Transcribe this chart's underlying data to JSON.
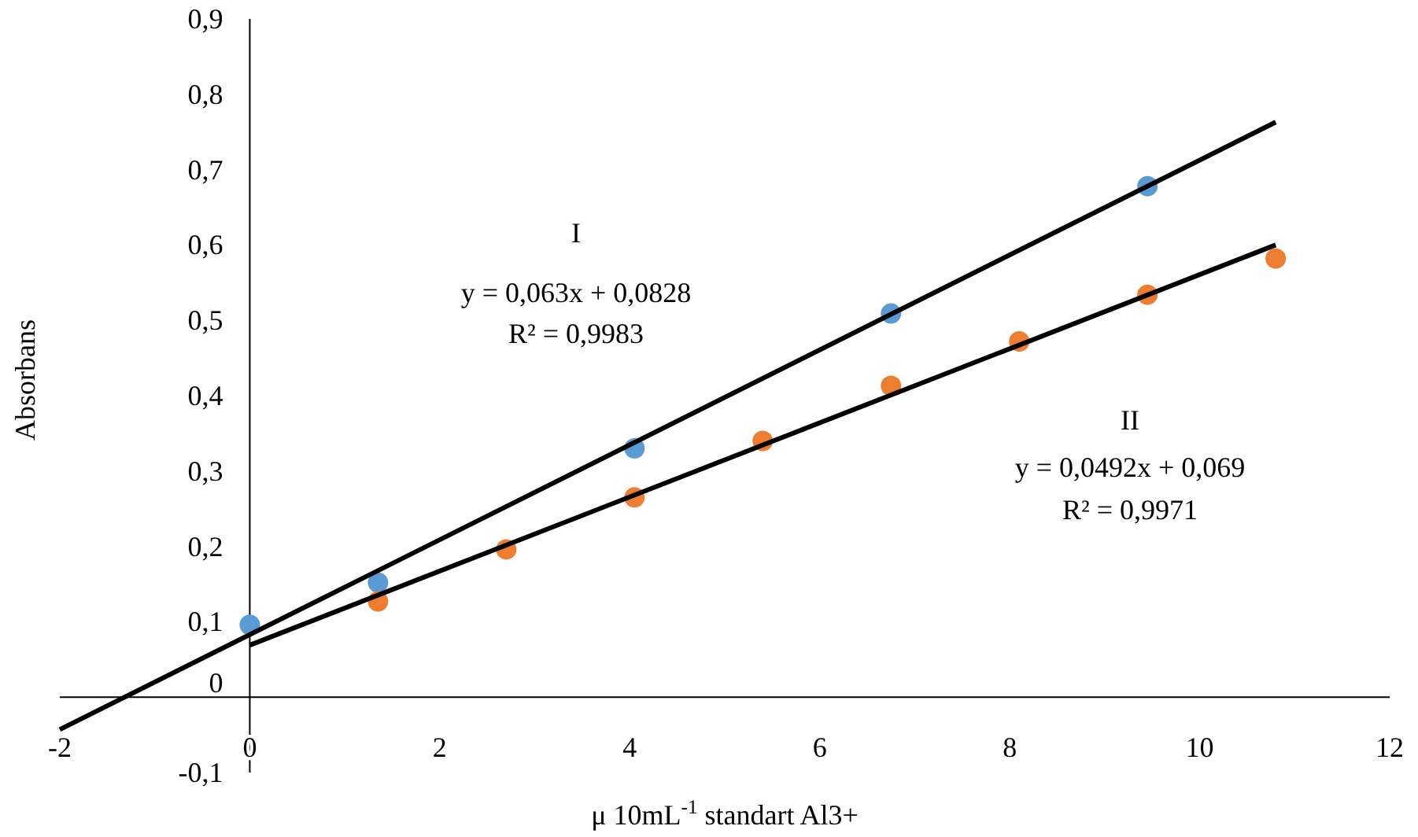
{
  "chart_data": {
    "type": "scatter",
    "xlabel": "μ 10mL$^{-1}$ standart Al3+",
    "ylabel": "Absorbans",
    "xlim": [
      -2,
      12
    ],
    "xticks": [
      -2,
      0,
      2,
      4,
      6,
      8,
      10,
      12
    ],
    "ylim": [
      -0.1,
      0.9
    ],
    "yticks": [
      {
        "value": -0.1,
        "label": "-0,1"
      },
      0,
      {
        "value": 0.1,
        "label": "0,1"
      },
      {
        "value": 0.2,
        "label": "0,2"
      },
      {
        "value": 0.3,
        "label": "0,3"
      },
      {
        "value": 0.4,
        "label": "0,4"
      },
      {
        "value": 0.5,
        "label": "0,5"
      },
      {
        "value": 0.6,
        "label": "0,6"
      },
      {
        "value": 0.7,
        "label": "0,7"
      },
      {
        "value": 0.8,
        "label": "0,8"
      },
      {
        "value": 0.9,
        "label": "0,9"
      }
    ],
    "grid": false,
    "marker": "circle",
    "series": [
      {
        "color": "#5b9bd5",
        "x": [
          0,
          1.35,
          4.05,
          6.75,
          9.45
        ],
        "values": [
          0.096,
          0.152,
          0.33,
          0.509,
          0.678
        ]
      },
      {
        "color": "#ed7d31",
        "x": [
          1.35,
          2.7,
          4.05,
          5.4,
          6.75,
          8.1,
          9.45,
          10.8
        ],
        "values": [
          0.127,
          0.196,
          0.265,
          0.34,
          0.413,
          0.472,
          0.534,
          0.582
        ]
      },
      {
        "type": "line",
        "marker": "none",
        "color": "#000000",
        "x": [
          -2,
          10.8
        ],
        "values": [
          -0.043,
          0.763
        ]
      },
      {
        "type": "line",
        "marker": "none",
        "color": "#000000",
        "x": [
          0,
          10.8
        ],
        "values": [
          0.069,
          0.6
        ]
      }
    ],
    "annotations": [
      "I",
      "y = 0,063x + 0,0828",
      "R² = 0,9983",
      "II",
      "y = 0,0492x + 0,069",
      "R² = 0,9971"
    ]
  }
}
